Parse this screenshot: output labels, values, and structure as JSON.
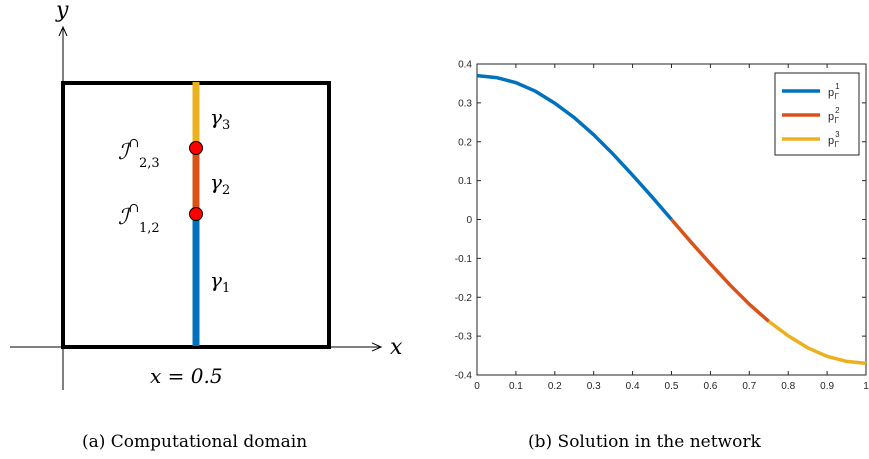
{
  "figure_a": {
    "caption": "(a) Computational domain",
    "axis_x_label": "x",
    "axis_y_label": "y",
    "line_label": "x = 0.5",
    "segments": [
      {
        "label": "γ",
        "sub": "1",
        "color": "#0072BD"
      },
      {
        "label": "γ",
        "sub": "2",
        "color": "#D95319"
      },
      {
        "label": "γ",
        "sub": "3",
        "color": "#EDB120"
      }
    ],
    "intersections": [
      {
        "label": "ℐ",
        "sup": "∩",
        "sub": "1,2"
      },
      {
        "label": "ℐ",
        "sup": "∩",
        "sub": "2,3"
      }
    ]
  },
  "figure_b": {
    "caption": "(b) Solution in the network"
  },
  "chart_data": {
    "type": "line",
    "xlim": [
      0,
      1
    ],
    "ylim": [
      -0.4,
      0.4
    ],
    "x_ticks": [
      0,
      0.1,
      0.2,
      0.3,
      0.4,
      0.5,
      0.6,
      0.7,
      0.8,
      0.9,
      1
    ],
    "x_tick_labels": [
      "0",
      "0.1",
      "0.2",
      "0.3",
      "0.4",
      "0.5",
      "0.6",
      "0.7",
      "0.8",
      "0.9",
      "1"
    ],
    "y_ticks": [
      -0.4,
      -0.3,
      -0.2,
      -0.1,
      0,
      0.1,
      0.2,
      0.3,
      0.4
    ],
    "y_tick_labels": [
      "-0.4",
      "-0.3",
      "-0.2",
      "-0.1",
      "0",
      "0.1",
      "0.2",
      "0.3",
      "0.4"
    ],
    "legend_position": "top-right",
    "grid": false,
    "series": [
      {
        "name": "p",
        "sub": "Γ",
        "sup": "1",
        "color": "#0072BD",
        "x": [
          0,
          0.05,
          0.1,
          0.15,
          0.2,
          0.25,
          0.3,
          0.35,
          0.4,
          0.45,
          0.5
        ],
        "y": [
          0.37,
          0.365,
          0.352,
          0.33,
          0.299,
          0.262,
          0.218,
          0.168,
          0.114,
          0.058,
          0
        ]
      },
      {
        "name": "p",
        "sub": "Γ",
        "sup": "2",
        "color": "#D95319",
        "x": [
          0.5,
          0.55,
          0.6,
          0.65,
          0.7,
          0.75
        ],
        "y": [
          0,
          -0.058,
          -0.114,
          -0.168,
          -0.218,
          -0.262
        ]
      },
      {
        "name": "p",
        "sub": "Γ",
        "sup": "3",
        "color": "#EDB120",
        "x": [
          0.75,
          0.8,
          0.85,
          0.9,
          0.95,
          1
        ],
        "y": [
          -0.262,
          -0.299,
          -0.33,
          -0.352,
          -0.365,
          -0.37
        ]
      }
    ]
  }
}
